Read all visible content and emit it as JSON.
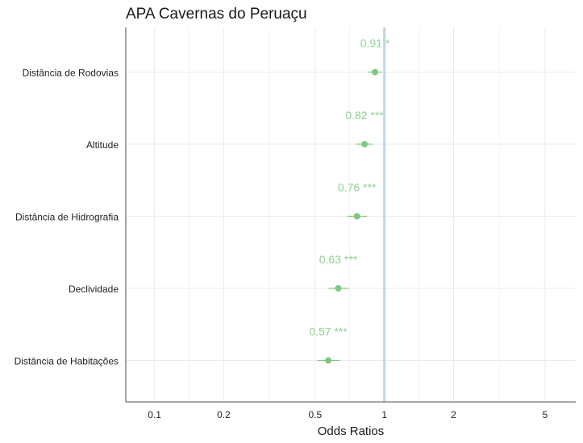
{
  "chart_data": {
    "type": "scatter",
    "title": "APA Cavernas do Peruaçu",
    "xlabel": "Odds Ratios",
    "ylabel": "",
    "x_scale": "log",
    "xlim": [
      0.075,
      6.8
    ],
    "x_ticks": [
      {
        "value": 0.1,
        "label": "0.1"
      },
      {
        "value": 0.2,
        "label": "0.2"
      },
      {
        "value": 0.5,
        "label": "0.5"
      },
      {
        "value": 1,
        "label": "1"
      },
      {
        "value": 2,
        "label": "2"
      },
      {
        "value": 5,
        "label": "5"
      }
    ],
    "grid": true,
    "reference_line": 1,
    "categories": [
      "Distância de Rodovias",
      "Altitude",
      "Distância de Hidrografia",
      "Declividade",
      "Distância de Habitações"
    ],
    "values": [
      0.91,
      0.82,
      0.76,
      0.63,
      0.57
    ],
    "ci_low": [
      0.85,
      0.75,
      0.69,
      0.57,
      0.51
    ],
    "ci_high": [
      0.98,
      0.89,
      0.84,
      0.7,
      0.64
    ],
    "labels": [
      "0.91 *",
      "0.82 ***",
      "0.76 ***",
      "0.63 ***",
      "0.57 ***"
    ],
    "colors": {
      "point": "#7fc97f",
      "label": "#8fd18f",
      "reference": "#c3d5e6",
      "grid": "#ebebeb",
      "axis": "#4d4d4d"
    }
  }
}
